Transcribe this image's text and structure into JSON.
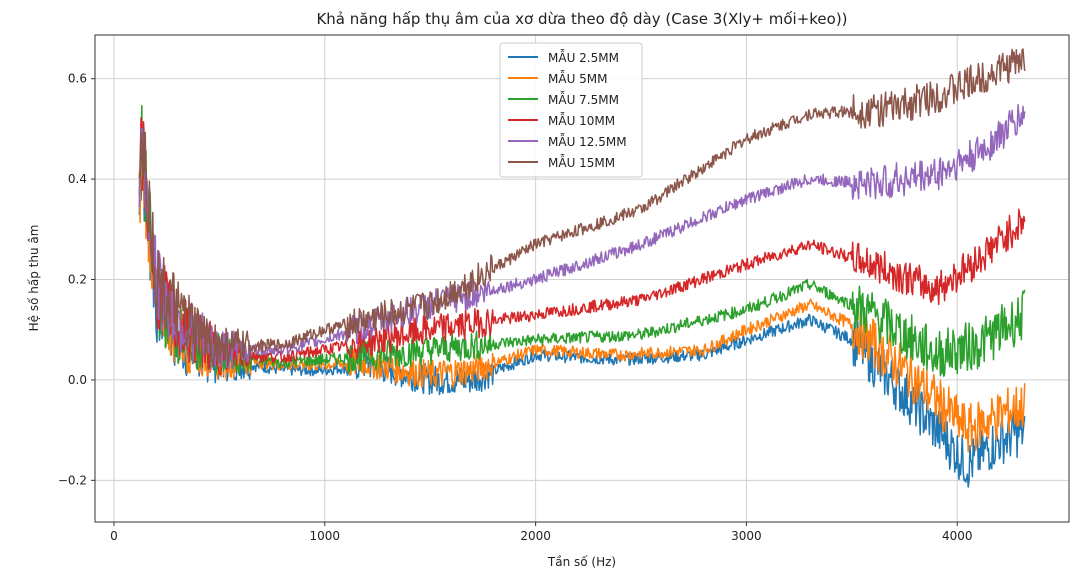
{
  "chart_data": {
    "type": "line",
    "title": "Khả năng hấp thụ âm của xơ dừa theo độ dày (Case 3(Xly+ mối+keo))",
    "xlabel": "Tần số (Hz)",
    "ylabel": "Hệ số hấp thu âm",
    "xlim": [
      -90,
      4530
    ],
    "ylim": [
      -0.283,
      0.687
    ],
    "xticks": [
      0,
      1000,
      2000,
      3000,
      4000
    ],
    "xtick_labels": [
      "0",
      "1000",
      "2000",
      "3000",
      "4000"
    ],
    "yticks": [
      -0.2,
      0.0,
      0.2,
      0.4,
      0.6
    ],
    "ytick_labels": [
      "−0.2",
      "0.0",
      "0.2",
      "0.4",
      "0.6"
    ],
    "grid": true,
    "legend_position": "upper-center",
    "series": [
      {
        "name": "MẪU 2.5MM",
        "color": "#1f77b4",
        "x": [
          120,
          130,
          200,
          300,
          400,
          500,
          800,
          1000,
          1200,
          1500,
          1700,
          2000,
          2400,
          2800,
          3000,
          3300,
          3500,
          3800,
          4050,
          4200,
          4320
        ],
        "y": [
          0.33,
          0.45,
          0.15,
          0.08,
          0.05,
          0.04,
          0.02,
          0.02,
          0.03,
          0.0,
          0.0,
          0.05,
          0.04,
          0.05,
          0.08,
          0.12,
          0.08,
          -0.05,
          -0.17,
          -0.12,
          -0.1
        ]
      },
      {
        "name": "MẪU 5MM",
        "color": "#ff7f0e",
        "x": [
          120,
          130,
          200,
          300,
          400,
          500,
          800,
          1000,
          1200,
          1500,
          1700,
          2000,
          2400,
          2800,
          3000,
          3300,
          3500,
          3800,
          4050,
          4200,
          4320
        ],
        "y": [
          0.34,
          0.46,
          0.16,
          0.09,
          0.06,
          0.045,
          0.03,
          0.03,
          0.035,
          0.01,
          0.02,
          0.06,
          0.05,
          0.06,
          0.1,
          0.15,
          0.11,
          0.0,
          -0.1,
          -0.07,
          -0.05
        ]
      },
      {
        "name": "MẪU 7.5MM",
        "color": "#2ca02c",
        "x": [
          120,
          130,
          200,
          300,
          400,
          500,
          800,
          1000,
          1500,
          2000,
          2500,
          3000,
          3300,
          3600,
          3900,
          4100,
          4320
        ],
        "y": [
          0.35,
          0.47,
          0.17,
          0.1,
          0.07,
          0.05,
          0.035,
          0.04,
          0.06,
          0.08,
          0.09,
          0.14,
          0.19,
          0.13,
          0.05,
          0.07,
          0.13
        ]
      },
      {
        "name": "MẪU 10MM",
        "color": "#d62728",
        "x": [
          120,
          130,
          200,
          300,
          400,
          500,
          800,
          1000,
          1500,
          2000,
          2500,
          3000,
          3300,
          3600,
          3900,
          4100,
          4320
        ],
        "y": [
          0.36,
          0.48,
          0.18,
          0.11,
          0.08,
          0.055,
          0.045,
          0.06,
          0.1,
          0.13,
          0.16,
          0.23,
          0.27,
          0.23,
          0.18,
          0.24,
          0.32
        ]
      },
      {
        "name": "MẪU 12.5MM",
        "color": "#9467bd",
        "x": [
          120,
          130,
          200,
          300,
          400,
          500,
          800,
          1000,
          1500,
          2000,
          2500,
          3000,
          3300,
          3600,
          3900,
          4100,
          4320
        ],
        "y": [
          0.37,
          0.49,
          0.19,
          0.12,
          0.085,
          0.06,
          0.06,
          0.08,
          0.15,
          0.2,
          0.27,
          0.36,
          0.4,
          0.39,
          0.41,
          0.45,
          0.53
        ]
      },
      {
        "name": "MẪU 15MM",
        "color": "#8c564b",
        "x": [
          120,
          130,
          200,
          300,
          400,
          500,
          800,
          1000,
          1500,
          2000,
          2500,
          3000,
          3300,
          3700,
          4000,
          4320
        ],
        "y": [
          0.38,
          0.5,
          0.2,
          0.13,
          0.09,
          0.065,
          0.07,
          0.1,
          0.15,
          0.27,
          0.34,
          0.48,
          0.53,
          0.54,
          0.58,
          0.64
        ]
      }
    ]
  }
}
